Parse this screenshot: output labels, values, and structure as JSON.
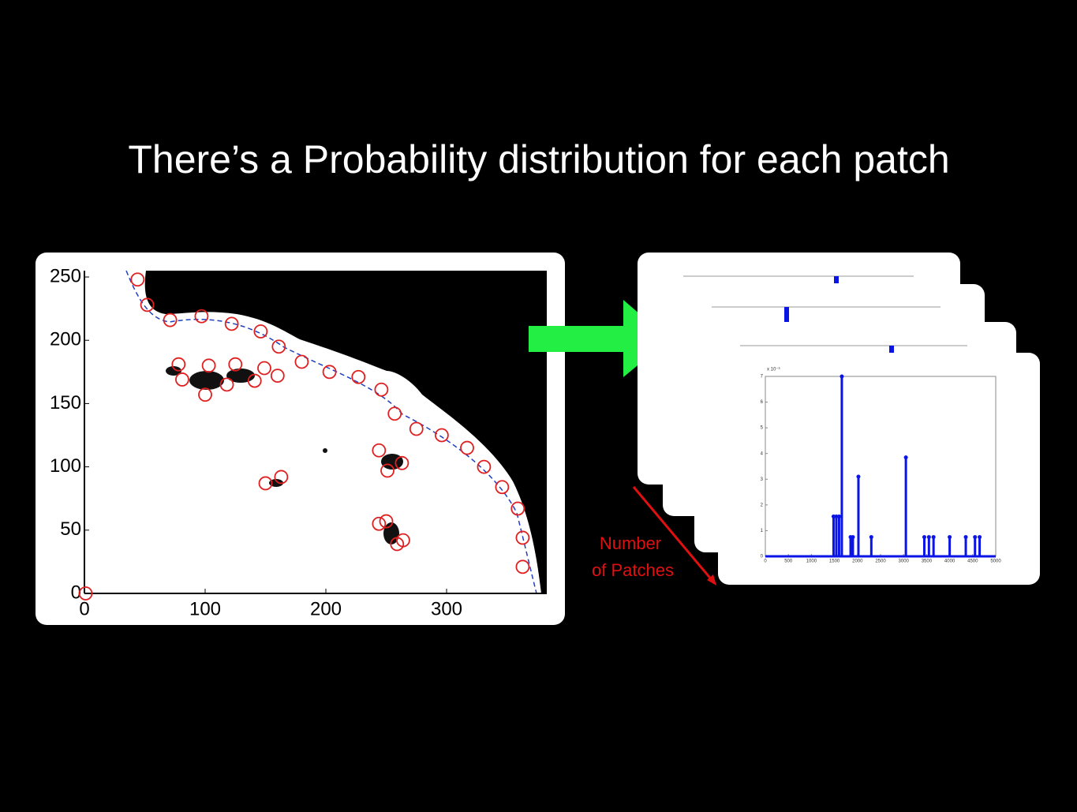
{
  "title": "There’s a Probability distribution for each patch",
  "patch_map": {
    "xlim": [
      0,
      383
    ],
    "ylim": [
      0,
      255
    ],
    "xticks": [
      0,
      100,
      200,
      300
    ],
    "yticks": [
      0,
      50,
      100,
      150,
      200,
      250
    ],
    "points_x": [
      44,
      52,
      71,
      97,
      122,
      146,
      161,
      180,
      203,
      227,
      246,
      257,
      275,
      296,
      317,
      331,
      346,
      359,
      363,
      363,
      1,
      78,
      103,
      125,
      149,
      160,
      81,
      100,
      118,
      141,
      244,
      263,
      251,
      150,
      163,
      244,
      250,
      259,
      264
    ],
    "points_y": [
      248,
      228,
      216,
      219,
      213,
      207,
      195,
      183,
      175,
      171,
      161,
      142,
      130,
      125,
      115,
      100,
      84,
      67,
      44,
      21,
      0,
      181,
      180,
      181,
      178,
      172,
      169,
      157,
      165,
      168,
      113,
      103,
      97,
      87,
      92,
      55,
      57,
      39,
      42
    ],
    "point_color": "#e02020"
  },
  "chart_data": {
    "type": "stem",
    "multiplier_label": "x 10⁻³",
    "x": [
      1480,
      1540,
      1600,
      1660,
      1850,
      1900,
      2020,
      2300,
      3050,
      3450,
      3550,
      3650,
      4000,
      4350,
      4550,
      4650
    ],
    "values": [
      1.55,
      1.55,
      1.55,
      7,
      0.75,
      0.75,
      3.1,
      0.75,
      3.85,
      0.75,
      0.75,
      0.75,
      0.75,
      0.75,
      0.75,
      0.75
    ],
    "color": "#0a14e6",
    "xlim": [
      0,
      5000
    ],
    "ylim": [
      0,
      7
    ],
    "xticks": [
      0,
      500,
      1000,
      1500,
      2000,
      2500,
      3000,
      3500,
      4000,
      4500,
      5000
    ],
    "yticks": [
      0,
      1,
      2,
      3,
      4,
      5,
      6,
      7
    ]
  },
  "annotation": [
    "Number",
    "of Patches"
  ]
}
